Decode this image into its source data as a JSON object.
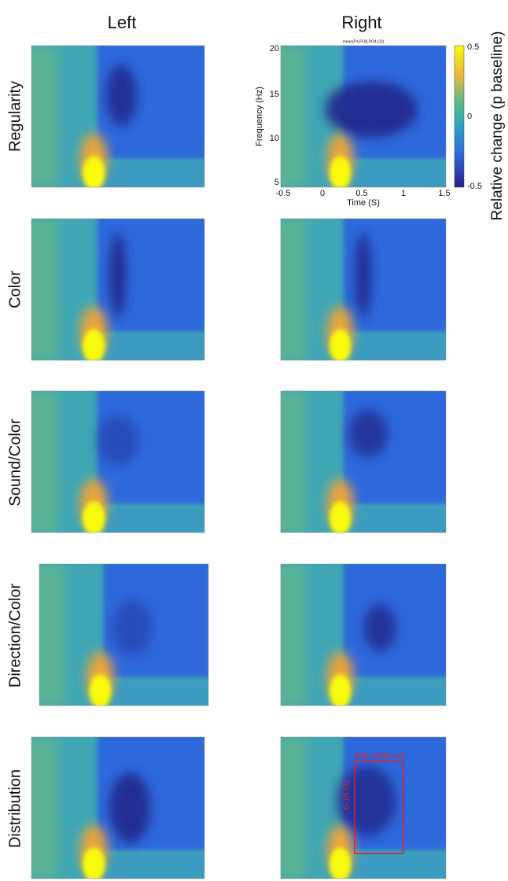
{
  "columns": [
    "Left",
    "Right"
  ],
  "rows": [
    "Regularity",
    "Color",
    "Sound/Color",
    "Direction/Color",
    "Distribution"
  ],
  "axes": {
    "title": "mean(P4,PO8,PO4,O2)",
    "xlabel": "Time (S)",
    "ylabel": "Frequency (Hz)",
    "xticks": [
      "-0.5",
      "0",
      "0.5",
      "1",
      "1.5"
    ],
    "yticks": [
      "20",
      "15",
      "10",
      "5"
    ]
  },
  "colorbar": {
    "label": "Relative change (p baseline)",
    "ticks": [
      "0.5",
      "0",
      "-0.5"
    ]
  },
  "annotation": {
    "time": "400-1000 ms",
    "frequency": "8-15 Hz"
  }
}
